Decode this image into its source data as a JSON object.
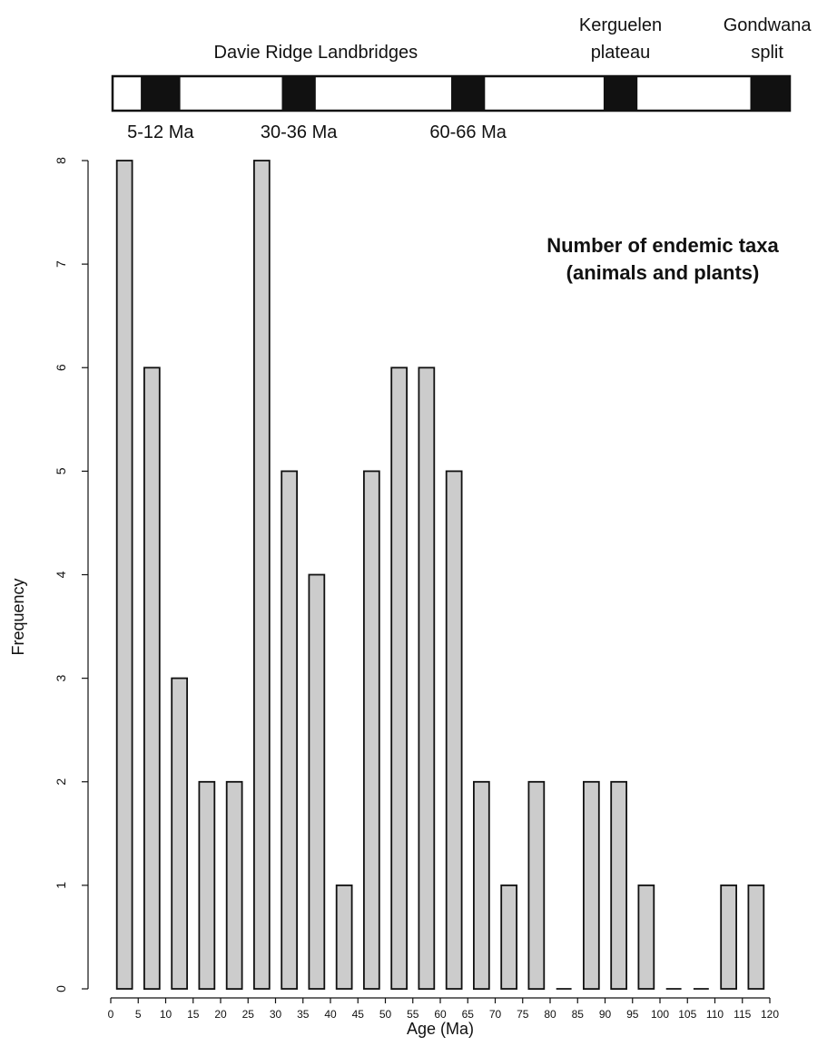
{
  "chart_data": {
    "type": "bar",
    "title": "",
    "annotation": [
      "Number of endemic taxa",
      "(animals and plants)"
    ],
    "xlabel": "Age (Ma)",
    "ylabel": "Frequency",
    "xlim": [
      0,
      120
    ],
    "ylim": [
      0,
      8
    ],
    "bin_width": 5,
    "categories": [
      "0-5",
      "5-10",
      "10-15",
      "15-20",
      "20-25",
      "25-30",
      "30-35",
      "35-40",
      "40-45",
      "45-50",
      "50-55",
      "55-60",
      "60-65",
      "65-70",
      "70-75",
      "75-80",
      "80-85",
      "85-90",
      "90-95",
      "95-100",
      "100-105",
      "105-110",
      "110-115",
      "115-120"
    ],
    "values": [
      8,
      6,
      3,
      2,
      2,
      8,
      5,
      4,
      1,
      5,
      6,
      6,
      5,
      2,
      1,
      2,
      0,
      2,
      2,
      1,
      0,
      0,
      1,
      1
    ],
    "x_ticks": [
      0,
      5,
      10,
      15,
      20,
      25,
      30,
      35,
      40,
      45,
      50,
      55,
      60,
      65,
      70,
      75,
      80,
      85,
      90,
      95,
      100,
      105,
      110,
      115,
      120
    ],
    "y_ticks": [
      0,
      1,
      2,
      3,
      4,
      5,
      6,
      7,
      8
    ],
    "bar_color": "#cccccc",
    "edge_color": "#111111",
    "grid": false,
    "timeline": {
      "events": [
        {
          "label": "Davie Ridge Landbridges",
          "start": 5,
          "end": 12
        },
        {
          "label": "Davie Ridge Landbridges",
          "start": 30,
          "end": 36
        },
        {
          "label": "Davie Ridge Landbridges",
          "start": 60,
          "end": 66
        },
        {
          "label": "Kerguelen plateau",
          "start": 87,
          "end": 93
        },
        {
          "label": "Gondwana split",
          "start": 113,
          "end": 120
        }
      ],
      "top_labels": [
        {
          "lines": [
            "Davie Ridge Landbridges"
          ],
          "at": 36
        },
        {
          "lines": [
            "Kerguelen",
            "plateau"
          ],
          "at": 90
        },
        {
          "lines": [
            "Gondwana",
            "split"
          ],
          "at": 116
        }
      ],
      "bottom_labels": [
        {
          "text": "5-12 Ma",
          "at": 8.5
        },
        {
          "text": "30-36 Ma",
          "at": 33
        },
        {
          "text": "60-66 Ma",
          "at": 63
        }
      ]
    }
  }
}
